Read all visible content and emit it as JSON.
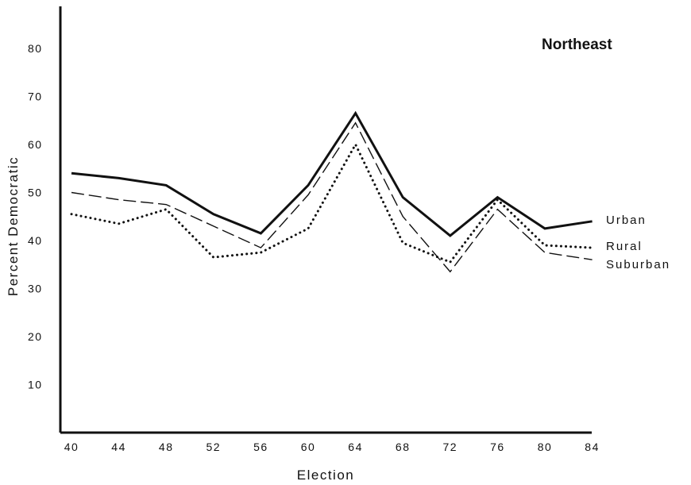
{
  "chart_data": {
    "type": "line",
    "title": "Northeast",
    "xlabel": "Election",
    "ylabel": "Percent Democratic",
    "x": [
      "40",
      "44",
      "48",
      "52",
      "56",
      "60",
      "64",
      "68",
      "72",
      "76",
      "80",
      "84"
    ],
    "y_ticks": [
      "10",
      "20",
      "30",
      "40",
      "50",
      "60",
      "70",
      "80"
    ],
    "ylim": [
      0,
      90
    ],
    "grid": false,
    "series": [
      {
        "name": "Urban",
        "style": "solid",
        "values": [
          54,
          53,
          51.5,
          45.5,
          41.5,
          51.5,
          66.5,
          49,
          41,
          49,
          42.5,
          44
        ]
      },
      {
        "name": "Rural",
        "style": "dotted",
        "values": [
          45.5,
          43.5,
          46.5,
          36.5,
          37.5,
          42.5,
          60,
          39.5,
          35.5,
          48.5,
          39,
          38.5
        ]
      },
      {
        "name": "Suburban",
        "style": "dashed",
        "values": [
          50,
          48.5,
          47.5,
          43,
          38.5,
          49.5,
          64.5,
          45,
          33.5,
          46.5,
          37.5,
          36
        ]
      }
    ],
    "legend": "series labels at right end of lines"
  }
}
